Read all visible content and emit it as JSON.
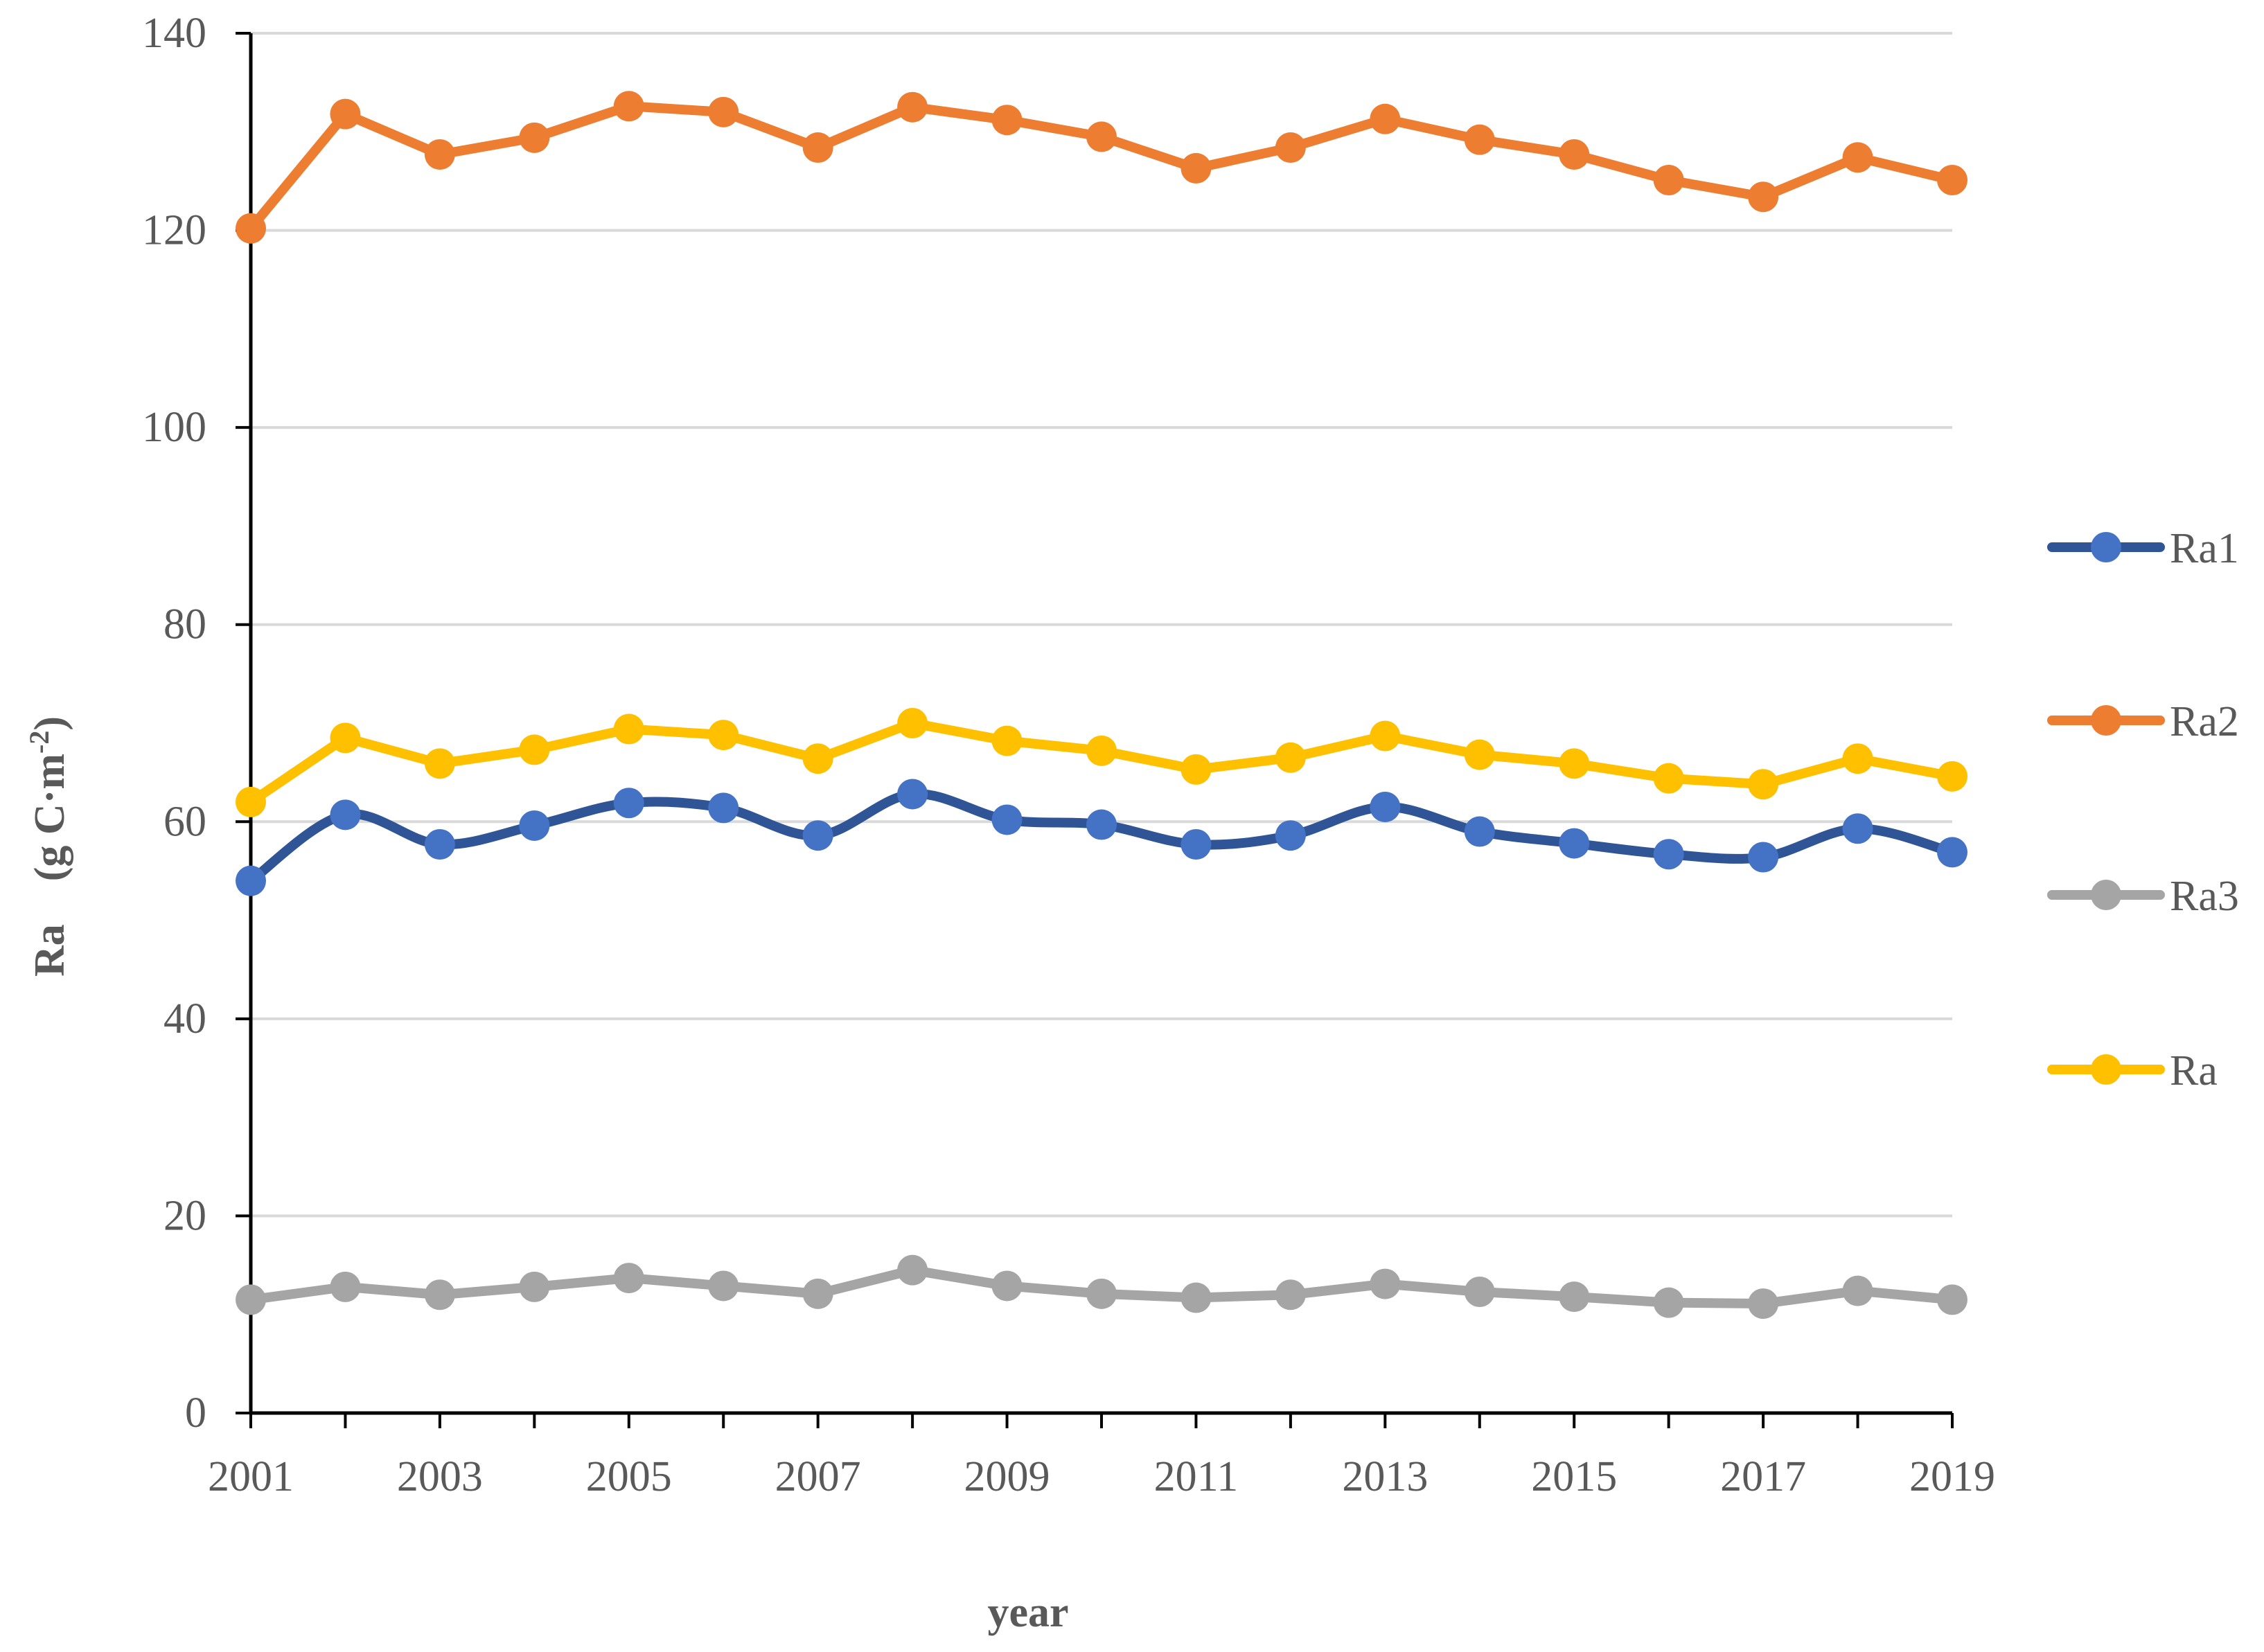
{
  "chart_data": {
    "type": "line",
    "title": "",
    "xlabel": "year",
    "ylabel": "Ra　(g C·m",
    "ylabel_sup": "-2",
    "ylabel_close": ")",
    "x": [
      2001,
      2002,
      2003,
      2004,
      2005,
      2006,
      2007,
      2008,
      2009,
      2010,
      2011,
      2012,
      2013,
      2014,
      2015,
      2016,
      2017,
      2018,
      2019
    ],
    "x_tick_labels": [
      "2001",
      "2003",
      "2005",
      "2007",
      "2009",
      "2011",
      "2013",
      "2015",
      "2017",
      "2019"
    ],
    "y_tick_labels": [
      "0",
      "20",
      "40",
      "60",
      "80",
      "100",
      "120",
      "140"
    ],
    "ylim": [
      0,
      140
    ],
    "xlim": [
      2001,
      2019
    ],
    "grid": true,
    "legend_position": "right",
    "series": [
      {
        "name": "Ra1",
        "color": "#2F5597",
        "marker_color": "#4472C4",
        "smooth": true,
        "values": [
          54.0,
          60.7,
          57.7,
          59.6,
          61.9,
          61.4,
          58.6,
          62.8,
          60.2,
          59.7,
          57.7,
          58.6,
          61.5,
          59.0,
          57.8,
          56.7,
          56.4,
          59.3,
          56.9
        ]
      },
      {
        "name": "Ra2",
        "color": "#ED7D31",
        "marker_color": "#ED7D31",
        "smooth": false,
        "values": [
          120.2,
          131.8,
          127.7,
          129.4,
          132.6,
          132.0,
          128.4,
          132.5,
          131.2,
          129.5,
          126.3,
          128.4,
          131.3,
          129.2,
          127.7,
          125.1,
          123.4,
          127.4,
          125.1
        ]
      },
      {
        "name": "Ra3",
        "color": "#A5A5A5",
        "marker_color": "#A5A5A5",
        "smooth": false,
        "values": [
          11.5,
          12.8,
          12.0,
          12.8,
          13.7,
          12.9,
          12.1,
          14.5,
          12.9,
          12.1,
          11.7,
          12.0,
          13.1,
          12.3,
          11.8,
          11.2,
          11.1,
          12.4,
          11.5
        ]
      },
      {
        "name": "Ra",
        "color": "#FFC000",
        "marker_color": "#FFC000",
        "smooth": false,
        "values": [
          62.0,
          68.5,
          65.9,
          67.3,
          69.4,
          68.8,
          66.4,
          70.0,
          68.2,
          67.2,
          65.3,
          66.5,
          68.7,
          66.8,
          65.9,
          64.4,
          63.8,
          66.4,
          64.6
        ]
      }
    ]
  }
}
